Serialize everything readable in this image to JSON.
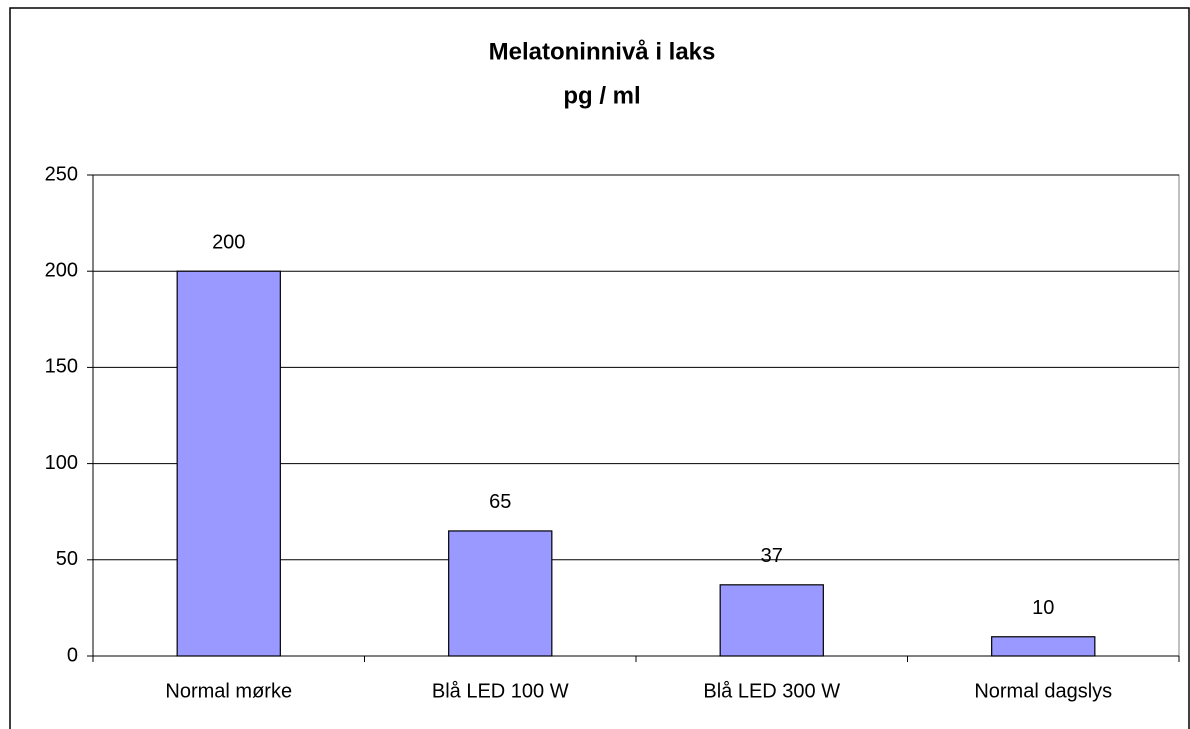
{
  "chart_data": {
    "type": "bar",
    "title": "Melatoninnivå i laks",
    "subtitle": "pg / ml",
    "categories": [
      "Normal mørke",
      "Blå LED 100 W",
      "Blå LED 300 W",
      "Normal dagslys"
    ],
    "values": [
      200,
      65,
      37,
      10
    ],
    "color": "#9999ff",
    "ylim": [
      0,
      250
    ],
    "yticks": [
      0,
      50,
      100,
      150,
      200,
      250
    ],
    "grid": true
  }
}
